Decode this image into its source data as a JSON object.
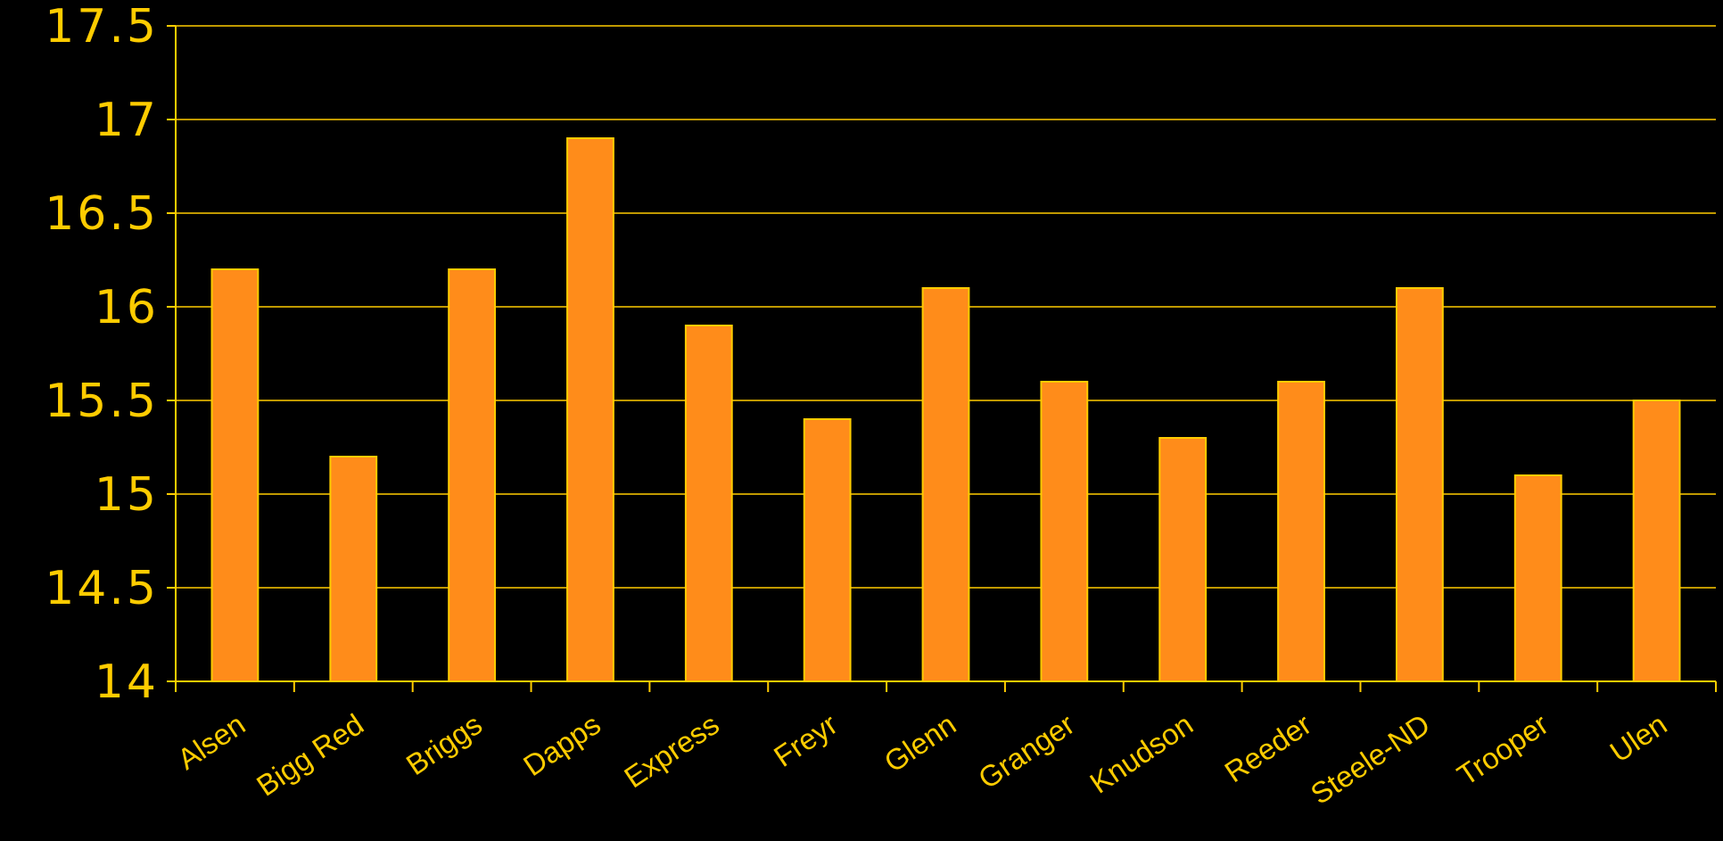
{
  "colors": {
    "background": "#000000",
    "text": "#FFCC00",
    "grid": "#FFCC00",
    "bar_fill": "#FF8C1A",
    "bar_stroke": "#FFCC00"
  },
  "chart_data": {
    "type": "bar",
    "title": "",
    "xlabel": "",
    "ylabel": "",
    "ylim": [
      14,
      17.5
    ],
    "yticks": [
      "14",
      "14.5",
      "15",
      "15.5",
      "16",
      "16.5",
      "17",
      "17.5"
    ],
    "grid": "horizontal",
    "legend": "none",
    "categories": [
      "Alsen",
      "Bigg Red",
      "Briggs",
      "Dapps",
      "Express",
      "Freyr",
      "Glenn",
      "Granger",
      "Knudson",
      "Reeder",
      "Steele-ND",
      "Trooper",
      "Ulen"
    ],
    "values": [
      16.2,
      15.2,
      16.2,
      16.9,
      15.9,
      15.4,
      16.1,
      15.6,
      15.3,
      15.6,
      16.1,
      15.1,
      15.5
    ]
  }
}
